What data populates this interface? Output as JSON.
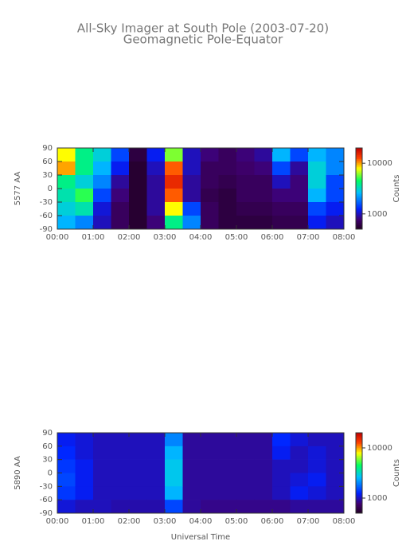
{
  "title": "All-Sky Imager at South Pole (2003-07-20)",
  "subtitle": "Geomagnetic Pole-Equator",
  "x_label": "Universal Time",
  "chart_data": [
    {
      "type": "heatmap",
      "y_label": "5577 AA",
      "colorbar_label": "Counts",
      "zscale": "log",
      "xlim": [
        0,
        8
      ],
      "xticks": [
        {
          "value": 0,
          "label": "00:00"
        },
        {
          "value": 1,
          "label": "01:00"
        },
        {
          "value": 2,
          "label": "02:00"
        },
        {
          "value": 3,
          "label": "03:00"
        },
        {
          "value": 4,
          "label": "04:00"
        },
        {
          "value": 5,
          "label": "05:00"
        },
        {
          "value": 6,
          "label": "06:00"
        },
        {
          "value": 7,
          "label": "07:00"
        },
        {
          "value": 8,
          "label": "08:00"
        }
      ],
      "ylim": [
        -90,
        90
      ],
      "yticks": [
        -90,
        -60,
        -30,
        0,
        30,
        60,
        90
      ],
      "zlim": [
        500,
        20000
      ],
      "zticks": [
        1000,
        10000
      ],
      "x": [
        0.25,
        0.75,
        1.25,
        1.75,
        2.25,
        2.75,
        3.25,
        3.75,
        4.25,
        4.75,
        5.25,
        5.75,
        6.25,
        6.75,
        7.25,
        7.75
      ],
      "y": [
        75,
        45,
        15,
        -15,
        -45,
        -75
      ],
      "z": [
        [
          8000,
          4000,
          3000,
          1500,
          600,
          1200,
          6000,
          1000,
          800,
          700,
          800,
          900,
          2500,
          1500,
          2500,
          2000
        ],
        [
          10000,
          4000,
          2500,
          1200,
          550,
          1000,
          12000,
          1000,
          700,
          700,
          750,
          800,
          1500,
          900,
          3000,
          2000
        ],
        [
          4000,
          3000,
          2000,
          900,
          550,
          900,
          15000,
          900,
          700,
          650,
          700,
          700,
          1000,
          800,
          3000,
          1500
        ],
        [
          3500,
          5000,
          1500,
          800,
          550,
          900,
          12000,
          900,
          650,
          600,
          700,
          700,
          800,
          800,
          2500,
          1500
        ],
        [
          3000,
          3500,
          1100,
          700,
          550,
          900,
          8000,
          1500,
          700,
          600,
          650,
          650,
          700,
          700,
          1500,
          1200
        ],
        [
          2500,
          2000,
          1000,
          700,
          550,
          800,
          4000,
          2000,
          700,
          600,
          600,
          600,
          650,
          650,
          1200,
          1000
        ]
      ]
    },
    {
      "type": "heatmap",
      "y_label": "5890 AA",
      "colorbar_label": "Counts",
      "zscale": "log",
      "xlim": [
        0,
        8
      ],
      "xticks": [
        {
          "value": 0,
          "label": "00:00"
        },
        {
          "value": 1,
          "label": "01:00"
        },
        {
          "value": 2,
          "label": "02:00"
        },
        {
          "value": 3,
          "label": "03:00"
        },
        {
          "value": 4,
          "label": "04:00"
        },
        {
          "value": 5,
          "label": "05:00"
        },
        {
          "value": 6,
          "label": "06:00"
        },
        {
          "value": 7,
          "label": "07:00"
        },
        {
          "value": 8,
          "label": "08:00"
        }
      ],
      "ylim": [
        -90,
        90
      ],
      "yticks": [
        -90,
        -60,
        -30,
        0,
        30,
        60,
        90
      ],
      "zlim": [
        500,
        20000
      ],
      "zticks": [
        1000,
        10000
      ],
      "x": [
        0.25,
        0.75,
        1.25,
        1.75,
        2.25,
        2.75,
        3.25,
        3.75,
        4.25,
        4.75,
        5.25,
        5.75,
        6.25,
        6.75,
        7.25,
        7.75
      ],
      "y": [
        75,
        45,
        15,
        -15,
        -45,
        -75
      ],
      "z": [
        [
          1200,
          1100,
          1000,
          1000,
          1000,
          1000,
          2000,
          900,
          900,
          900,
          900,
          900,
          1300,
          1100,
          1000,
          1000
        ],
        [
          1300,
          1100,
          1000,
          1000,
          1000,
          1000,
          2500,
          900,
          900,
          900,
          900,
          900,
          1200,
          1000,
          1100,
          1000
        ],
        [
          1400,
          1200,
          1000,
          1000,
          1000,
          1000,
          2800,
          900,
          900,
          900,
          900,
          900,
          1000,
          1000,
          1100,
          1000
        ],
        [
          1500,
          1200,
          1000,
          1000,
          1000,
          1000,
          2800,
          900,
          900,
          900,
          900,
          900,
          1000,
          1100,
          1200,
          1000
        ],
        [
          1400,
          1200,
          1000,
          1000,
          1000,
          1000,
          2500,
          900,
          900,
          900,
          900,
          900,
          1000,
          1200,
          1100,
          1000
        ],
        [
          1100,
          1000,
          1000,
          950,
          950,
          950,
          1500,
          900,
          850,
          850,
          850,
          850,
          850,
          900,
          900,
          900
        ]
      ]
    }
  ]
}
